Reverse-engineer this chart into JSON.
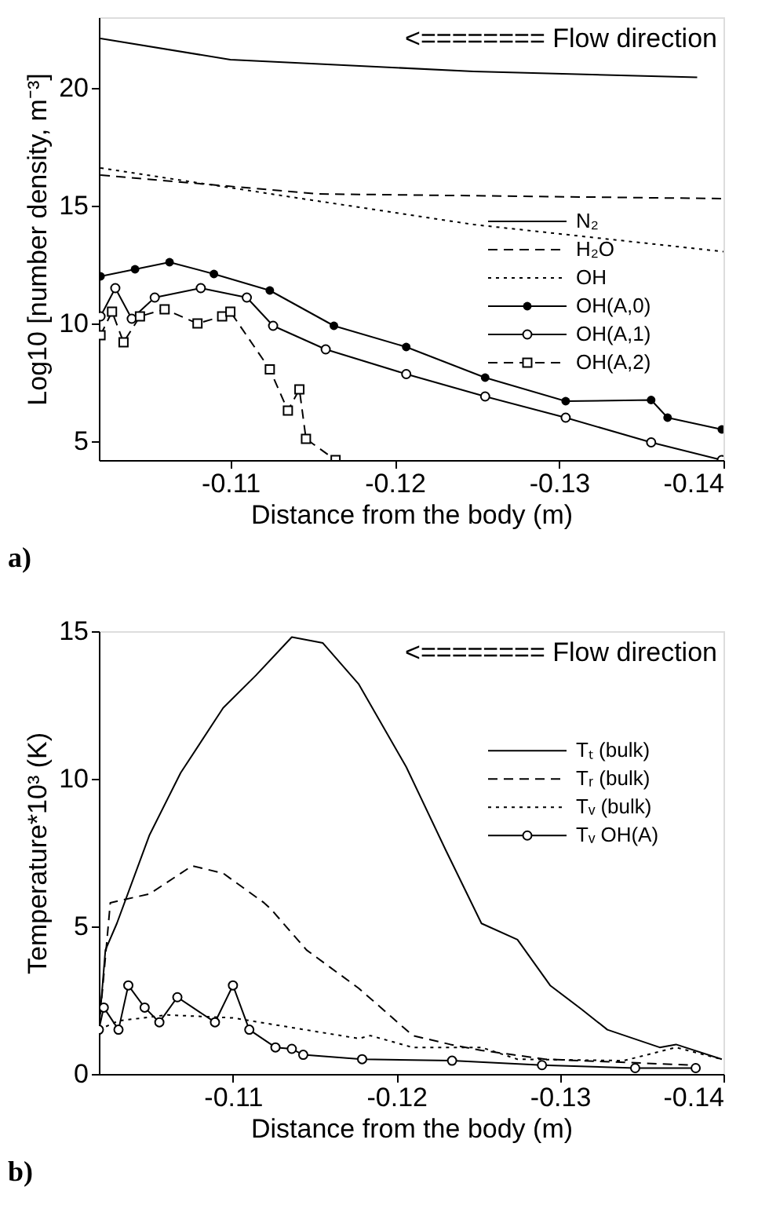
{
  "chart_data": [
    {
      "type": "line",
      "xlabel": "Distance from the body (m)",
      "ylabel": "Log10 [number density, m⁻³]",
      "xlim": [
        -0.102,
        -0.14
      ],
      "xticks": [
        -0.11,
        -0.12,
        -0.13,
        -0.14
      ],
      "ylim": [
        4.2,
        23
      ],
      "yticks": [
        5,
        10,
        15,
        20
      ],
      "legend": "bottom right",
      "grid": false,
      "annotations": [
        "<======== Flow direction",
        "a)"
      ],
      "series": [
        {
          "name": "N₂",
          "color": "#000000",
          "line_style": "solid",
          "x": [
            -0.1021,
            -0.11,
            -0.1248,
            -0.1384
          ],
          "values": [
            22.1,
            21.2,
            20.7,
            20.45
          ]
        },
        {
          "name": "H₂O",
          "color": "#000000",
          "line_style": "dashed",
          "x": [
            -0.1021,
            -0.1153,
            -0.14
          ],
          "values": [
            16.3,
            15.5,
            15.3
          ]
        },
        {
          "name": "OH",
          "color": "#000000",
          "line_style": "dotted",
          "x": [
            -0.1021,
            -0.1153,
            -0.1248,
            -0.14
          ],
          "values": [
            16.6,
            15.2,
            14.2,
            13.05
          ]
        },
        {
          "name": "OH(A,0)",
          "color": "#000000",
          "line_style": "solid",
          "marker": "circle",
          "x": [
            -0.1021,
            -0.1042,
            -0.1063,
            -0.109,
            -0.1124,
            -0.1163,
            -0.1207,
            -0.1255,
            -0.1304,
            -0.1356,
            -0.1366,
            -0.1399
          ],
          "values": [
            12.0,
            12.3,
            12.6,
            12.1,
            11.4,
            9.9,
            9.0,
            7.7,
            6.7,
            6.75,
            6.0,
            5.5
          ]
        },
        {
          "name": "OH(A,1)",
          "color": "#000000",
          "line_style": "solid",
          "marker": "circle_open",
          "x": [
            -0.1021,
            -0.103,
            -0.104,
            -0.1054,
            -0.1082,
            -0.111,
            -0.1126,
            -0.1158,
            -0.1207,
            -0.1255,
            -0.1304,
            -0.1356,
            -0.1399
          ],
          "values": [
            10.3,
            11.5,
            10.2,
            11.1,
            11.5,
            11.1,
            9.9,
            8.9,
            7.85,
            6.9,
            6.0,
            4.95,
            4.2
          ]
        },
        {
          "name": "OH(A,2)",
          "color": "#000000",
          "line_style": "dashed",
          "marker": "square_open",
          "x": [
            -0.1021,
            -0.1028,
            -0.1035,
            -0.1045,
            -0.106,
            -0.108,
            -0.1095,
            -0.11,
            -0.1124,
            -0.1135,
            -0.1142,
            -0.1146,
            -0.1164
          ],
          "values": [
            9.5,
            10.5,
            9.2,
            10.3,
            10.6,
            10.0,
            10.3,
            10.5,
            8.05,
            6.3,
            7.2,
            5.1,
            4.2
          ]
        }
      ]
    },
    {
      "type": "line",
      "xlabel": "Distance from the body (m)",
      "ylabel": "Temperature*10³ (K)",
      "xlim": [
        -0.1018,
        -0.14
      ],
      "xticks": [
        -0.11,
        -0.12,
        -0.13,
        -0.14
      ],
      "ylim": [
        0,
        15
      ],
      "yticks": [
        0,
        5,
        10,
        15
      ],
      "legend": "right",
      "grid": false,
      "annotations": [
        "<======== Flow direction",
        "b)"
      ],
      "series": [
        {
          "name": "Tₜ (bulk)",
          "color": "#000000",
          "line_style": "solid",
          "x": [
            -0.1018,
            -0.1022,
            -0.1029,
            -0.1049,
            -0.1068,
            -0.1094,
            -0.1114,
            -0.1136,
            -0.1155,
            -0.1177,
            -0.1206,
            -0.123,
            -0.1252,
            -0.1274,
            -0.1294,
            -0.1313,
            -0.1329,
            -0.1361,
            -0.1371,
            -0.1399
          ],
          "values": [
            1.5,
            4.2,
            5.1,
            8.1,
            10.2,
            12.4,
            13.5,
            14.8,
            14.6,
            13.2,
            10.4,
            7.6,
            5.1,
            4.55,
            3.0,
            2.2,
            1.5,
            0.9,
            1.0,
            0.5
          ]
        },
        {
          "name": "Tᵣ (bulk)",
          "color": "#000000",
          "line_style": "dashed",
          "x": [
            -0.1018,
            -0.1025,
            -0.1049,
            -0.1075,
            -0.1094,
            -0.1119,
            -0.1123,
            -0.1145,
            -0.1177,
            -0.121,
            -0.1233,
            -0.1252,
            -0.1291,
            -0.1381
          ],
          "values": [
            1.5,
            5.8,
            6.1,
            7.05,
            6.8,
            5.8,
            5.6,
            4.2,
            2.9,
            1.3,
            1.0,
            0.8,
            0.5,
            0.3
          ]
        },
        {
          "name": "Tᵥ (bulk)",
          "color": "#000000",
          "line_style": "dotted",
          "x": [
            -0.1018,
            -0.103,
            -0.106,
            -0.11,
            -0.1133,
            -0.1177,
            -0.1184,
            -0.121,
            -0.1252,
            -0.1274,
            -0.1339,
            -0.1371,
            -0.1399
          ],
          "values": [
            1.5,
            1.8,
            2.0,
            1.9,
            1.6,
            1.2,
            1.3,
            0.9,
            0.9,
            0.5,
            0.45,
            0.9,
            0.5
          ]
        },
        {
          "name": "Tᵥ OH(A)",
          "color": "#000000",
          "line_style": "solid",
          "marker": "circle_open",
          "x": [
            -0.1018,
            -0.1021,
            -0.103,
            -0.1036,
            -0.1046,
            -0.1055,
            -0.1066,
            -0.1089,
            -0.11,
            -0.111,
            -0.1126,
            -0.1136,
            -0.1143,
            -0.1179,
            -0.1234,
            -0.1289,
            -0.1346,
            -0.1383
          ],
          "values": [
            1.5,
            2.25,
            1.5,
            3.0,
            2.25,
            1.75,
            2.6,
            1.75,
            3.0,
            1.5,
            0.9,
            0.85,
            0.65,
            0.5,
            0.45,
            0.3,
            0.2,
            0.2
          ]
        }
      ]
    }
  ]
}
